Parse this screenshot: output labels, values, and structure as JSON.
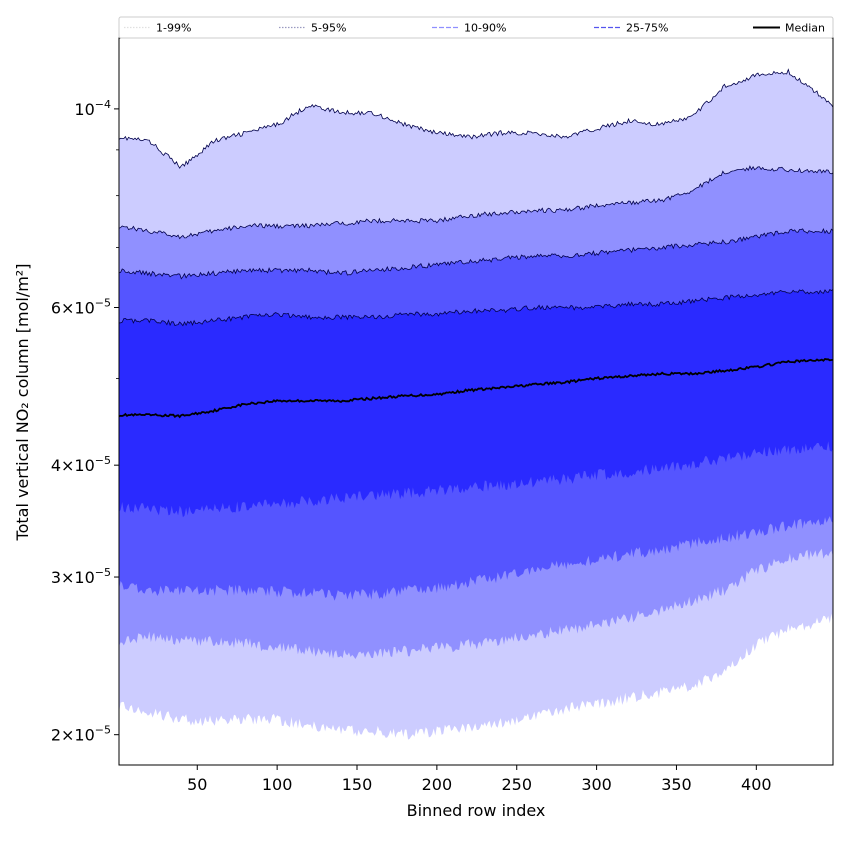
{
  "chart_data": {
    "type": "area",
    "xlabel": "Binned row index",
    "ylabel": "Total vertical NO₂ column [mol/m²]",
    "yscale": "log",
    "xlim": [
      1,
      448
    ],
    "ylim": [
      1.85e-05,
      0.00012
    ],
    "x_ticks": [
      {
        "value": 50,
        "label": "50"
      },
      {
        "value": 100,
        "label": "100"
      },
      {
        "value": 150,
        "label": "150"
      },
      {
        "value": 200,
        "label": "200"
      },
      {
        "value": 250,
        "label": "250"
      },
      {
        "value": 300,
        "label": "300"
      },
      {
        "value": 350,
        "label": "350"
      },
      {
        "value": 400,
        "label": "400"
      }
    ],
    "y_ticks": [
      {
        "value": 2e-05,
        "mantissa": "2",
        "exponent": "−5"
      },
      {
        "value": 3e-05,
        "mantissa": "3",
        "exponent": "−5"
      },
      {
        "value": 4e-05,
        "mantissa": "4",
        "exponent": "−5"
      },
      {
        "value": 6e-05,
        "mantissa": "6",
        "exponent": "−5"
      },
      {
        "value": 0.0001,
        "mantissa": "",
        "exponent": "−4"
      }
    ],
    "y_minor_ticks": [
      5e-05,
      7e-05,
      8e-05,
      9e-05
    ],
    "legend_position": "top, across full width",
    "grid": false,
    "x": [
      1,
      20,
      40,
      60,
      80,
      100,
      120,
      140,
      160,
      180,
      200,
      220,
      240,
      260,
      280,
      300,
      320,
      340,
      360,
      380,
      400,
      420,
      448
    ],
    "bands": [
      {
        "name": "1-99%",
        "color": "#ccccff",
        "line_style": "dotted",
        "upper": [
          9.3e-05,
          9.2e-05,
          8.6e-05,
          9.2e-05,
          9.4e-05,
          9.6e-05,
          0.000101,
          9.9e-05,
          9.9e-05,
          9.6e-05,
          9.4e-05,
          9.3e-05,
          9.4e-05,
          9.4e-05,
          9.3e-05,
          9.5e-05,
          9.7e-05,
          9.6e-05,
          9.8e-05,
          0.000106,
          0.000109,
          0.00011,
          0.000101
        ],
        "lower": [
          2.15e-05,
          2.12e-05,
          2.08e-05,
          2.07e-05,
          2.08e-05,
          2.08e-05,
          2.05e-05,
          2.02e-05,
          2.02e-05,
          2e-05,
          2.02e-05,
          2.04e-05,
          2.06e-05,
          2.1e-05,
          2.14e-05,
          2.16e-05,
          2.2e-05,
          2.23e-05,
          2.27e-05,
          2.35e-05,
          2.52e-05,
          2.62e-05,
          2.7e-05
        ]
      },
      {
        "name": "5-95%",
        "color": "#9090ff",
        "line_style": "dotted",
        "upper": [
          7.4e-05,
          7.3e-05,
          7.2e-05,
          7.3e-05,
          7.4e-05,
          7.4e-05,
          7.4e-05,
          7.45e-05,
          7.5e-05,
          7.5e-05,
          7.5e-05,
          7.6e-05,
          7.65e-05,
          7.7e-05,
          7.7e-05,
          7.8e-05,
          7.85e-05,
          7.9e-05,
          8.1e-05,
          8.5e-05,
          8.6e-05,
          8.55e-05,
          8.5e-05
        ],
        "lower": [
          2.55e-05,
          2.57e-05,
          2.55e-05,
          2.55e-05,
          2.53e-05,
          2.5e-05,
          2.48e-05,
          2.45e-05,
          2.46e-05,
          2.48e-05,
          2.5e-05,
          2.52e-05,
          2.55e-05,
          2.58e-05,
          2.62e-05,
          2.65e-05,
          2.7e-05,
          2.75e-05,
          2.82e-05,
          2.9e-05,
          3.05e-05,
          3.15e-05,
          3.2e-05
        ]
      },
      {
        "name": "10-90%",
        "color": "#5555ff",
        "line_style": "dashed",
        "upper": [
          6.6e-05,
          6.55e-05,
          6.5e-05,
          6.55e-05,
          6.6e-05,
          6.6e-05,
          6.6e-05,
          6.55e-05,
          6.6e-05,
          6.65e-05,
          6.7e-05,
          6.75e-05,
          6.8e-05,
          6.85e-05,
          6.85e-05,
          6.9e-05,
          6.95e-05,
          7e-05,
          7.05e-05,
          7.1e-05,
          7.2e-05,
          7.3e-05,
          7.3e-05
        ],
        "lower": [
          2.95e-05,
          2.9e-05,
          2.9e-05,
          2.9e-05,
          2.9e-05,
          2.89e-05,
          2.88e-05,
          2.86e-05,
          2.87e-05,
          2.89e-05,
          2.92e-05,
          2.96e-05,
          3e-05,
          3.05e-05,
          3.1e-05,
          3.14e-05,
          3.18e-05,
          3.22e-05,
          3.27e-05,
          3.32e-05,
          3.37e-05,
          3.42e-05,
          3.48e-05
        ]
      },
      {
        "name": "25-75%",
        "color": "#2a2aff",
        "line_style": "dashed",
        "upper": [
          5.8e-05,
          5.8e-05,
          5.75e-05,
          5.8e-05,
          5.85e-05,
          5.9e-05,
          5.85e-05,
          5.85e-05,
          5.85e-05,
          5.9e-05,
          5.9e-05,
          5.95e-05,
          5.95e-05,
          6e-05,
          6e-05,
          6e-05,
          6.05e-05,
          6.05e-05,
          6.1e-05,
          6.15e-05,
          6.2e-05,
          6.25e-05,
          6.25e-05
        ],
        "lower": [
          3.6e-05,
          3.57e-05,
          3.55e-05,
          3.57e-05,
          3.6e-05,
          3.62e-05,
          3.65e-05,
          3.68e-05,
          3.7e-05,
          3.72e-05,
          3.75e-05,
          3.78e-05,
          3.8e-05,
          3.83e-05,
          3.86e-05,
          3.9e-05,
          3.93e-05,
          3.97e-05,
          4.02e-05,
          4.07e-05,
          4.12e-05,
          4.17e-05,
          4.2e-05
        ]
      }
    ],
    "median": {
      "name": "Median",
      "color": "#000000",
      "line_style": "solid",
      "values": [
        4.55e-05,
        4.55e-05,
        4.54e-05,
        4.6e-05,
        4.68e-05,
        4.72e-05,
        4.72e-05,
        4.72e-05,
        4.75e-05,
        4.78e-05,
        4.8e-05,
        4.85e-05,
        4.88e-05,
        4.92e-05,
        4.95e-05,
        5e-05,
        5.03e-05,
        5.06e-05,
        5.06e-05,
        5.1e-05,
        5.15e-05,
        5.22e-05,
        5.25e-05
      ]
    },
    "legend": [
      {
        "label": "1-99%",
        "color": "#e0e0e0",
        "line_style": "dotted"
      },
      {
        "label": "5-95%",
        "color": "#9a9ac0",
        "line_style": "dotted"
      },
      {
        "label": "10-90%",
        "color": "#8f8fff",
        "line_style": "dashed"
      },
      {
        "label": "25-75%",
        "color": "#5555ee",
        "line_style": "dashed"
      },
      {
        "label": "Median",
        "color": "#000000",
        "line_style": "solid"
      }
    ]
  }
}
